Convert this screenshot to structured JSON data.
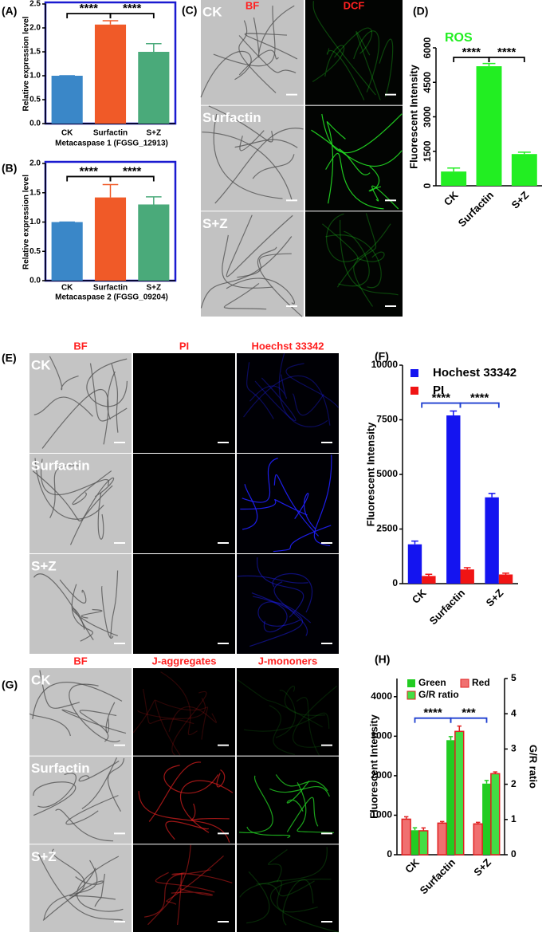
{
  "chart_data": [
    {
      "type": "bar",
      "panel": "(A)",
      "y_label": "Relative expression level",
      "x_label": "Metacaspase 1 (FGSG_12913)",
      "categories": [
        "CK",
        "Surfactin",
        "S+Z"
      ],
      "series": [
        {
          "values": [
            1,
            2.07,
            1.5
          ],
          "errors": [
            0,
            0.08,
            0.17
          ],
          "colors": [
            "#3a87c8",
            "#f05a28",
            "#4aaa7a"
          ]
        }
      ],
      "ylim": [
        0,
        2.5
      ],
      "yticks": [
        {
          "value": 0,
          "label": "0.0"
        },
        0.5,
        {
          "value": 1,
          "label": "1.0"
        },
        1.5,
        {
          "value": 2,
          "label": "2.0"
        },
        2.5
      ],
      "frame_color": "#1a1ad0",
      "annotation_color": "#000000",
      "annotations": [
        {
          "text": "****",
          "between": [
            "CK",
            "Surfactin"
          ]
        },
        {
          "text": "****",
          "between": [
            "Surfactin",
            "S+Z"
          ]
        }
      ]
    },
    {
      "type": "bar",
      "panel": "(B)",
      "y_label": "Relative expression level",
      "x_label": "Metacaspase 2 (FGSG_09204)",
      "categories": [
        "CK",
        "Surfactin",
        "S+Z"
      ],
      "series": [
        {
          "values": [
            1,
            1.42,
            1.3
          ],
          "errors": [
            0,
            0.22,
            0.13
          ],
          "colors": [
            "#3a87c8",
            "#f05a28",
            "#4aaa7a"
          ]
        }
      ],
      "ylim": [
        0,
        2
      ],
      "yticks": [
        {
          "value": 0,
          "label": "0.0"
        },
        0.5,
        {
          "value": 1,
          "label": "1.0"
        },
        1.5,
        {
          "value": 2,
          "label": "2.0"
        }
      ],
      "frame_color": "#1a1ad0",
      "annotation_color": "#000000",
      "annotations": [
        {
          "text": "****",
          "between": [
            "CK",
            "Surfactin"
          ]
        },
        {
          "text": "****",
          "between": [
            "Surfactin",
            "S+Z"
          ]
        }
      ]
    },
    {
      "type": "bar",
      "panel": "(D)",
      "y_label": "Fluorescent Intensity",
      "categories": [
        "CK",
        "Surfactin",
        "S+Z"
      ],
      "series": [
        {
          "name": "ROS",
          "color": "#22ee22",
          "values": [
            620,
            5200,
            1380
          ],
          "errors": [
            150,
            120,
            80
          ]
        }
      ],
      "ylim": [
        0,
        6000
      ],
      "yticks": [
        0,
        1500,
        3000,
        4500,
        6000
      ],
      "annotation_color": "#000000",
      "annotations": [
        {
          "text": "****",
          "between": [
            "CK",
            "Surfactin"
          ]
        },
        {
          "text": "****",
          "between": [
            "Surfactin",
            "S+Z"
          ]
        }
      ]
    },
    {
      "type": "bar",
      "panel": "(F)",
      "y_label": "Fluorescent Intensity",
      "categories": [
        "CK",
        "Surfactin",
        "S+Z"
      ],
      "series": [
        {
          "name": "Hochest 33342",
          "color": "#1414f0",
          "values": [
            1800,
            7700,
            3950
          ],
          "errors": [
            150,
            200,
            180
          ]
        },
        {
          "name": "PI",
          "color": "#f01414",
          "values": [
            350,
            650,
            420
          ],
          "errors": [
            80,
            80,
            60
          ]
        }
      ],
      "ylim": [
        0,
        10000
      ],
      "yticks": [
        0,
        2500,
        5000,
        7500,
        10000
      ],
      "annotation_color": "#1f3fd0",
      "annotations": [
        {
          "text": "****",
          "between": [
            "CK",
            "Surfactin"
          ]
        },
        {
          "text": "****",
          "between": [
            "Surfactin",
            "S+Z"
          ]
        }
      ]
    },
    {
      "type": "bar",
      "panel": "(H)",
      "y_label": "Fluorescent Intensity",
      "y2_label": "G/R ratio",
      "categories": [
        "CK",
        "Surfactin",
        "S+Z"
      ],
      "series": [
        {
          "name": "Green",
          "color": "#22cc22",
          "values": [
            620,
            2900,
            1800
          ],
          "errors": [
            60,
            90,
            80
          ]
        },
        {
          "name": "Red",
          "color": "#f07070",
          "values": [
            900,
            800,
            780
          ],
          "errors": [
            60,
            40,
            40
          ]
        },
        {
          "name": "G/R ratio",
          "color": "#44dd44",
          "axis": "y2",
          "values": [
            0.68,
            3.5,
            2.3
          ],
          "errors": [
            0.08,
            0.15,
            0.05
          ]
        }
      ],
      "ylim": [
        0,
        4460
      ],
      "yticks": [
        0,
        1000,
        2000,
        3000,
        4000
      ],
      "y2lim": [
        0,
        5
      ],
      "y2ticks": [
        0,
        1,
        2,
        3,
        4,
        5
      ],
      "annotation_color": "#1f3fd0",
      "annotations": [
        {
          "text": "****",
          "between": [
            "CK",
            "Surfactin"
          ]
        },
        {
          "text": "***",
          "between": [
            "Surfactin",
            "S+Z"
          ]
        }
      ]
    }
  ],
  "image_panels": [
    {
      "panel": "(C)",
      "columns": [
        "BF",
        "DCF"
      ],
      "rows": [
        "CK",
        "Surfactin",
        "S+Z"
      ]
    },
    {
      "panel": "(E)",
      "columns": [
        "BF",
        "PI",
        "Hoechst 33342"
      ],
      "rows": [
        "CK",
        "Surfactin",
        "S+Z"
      ]
    },
    {
      "panel": "(G)",
      "columns": [
        "BF",
        "J-aggregates",
        "J-mononers"
      ],
      "rows": [
        "CK",
        "Surfactin",
        "S+Z"
      ]
    }
  ]
}
